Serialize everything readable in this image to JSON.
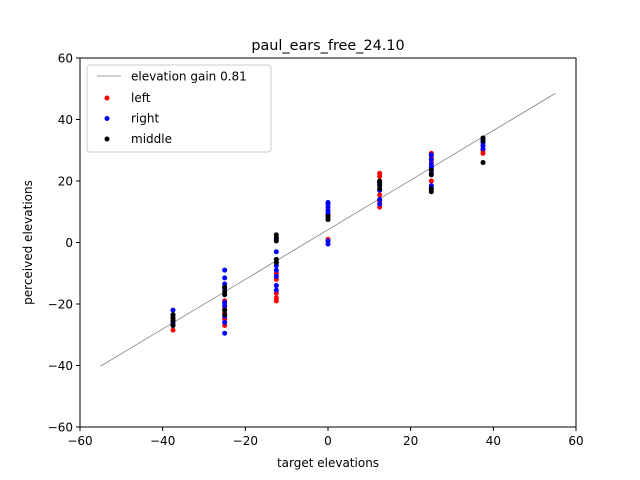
{
  "chart_data": {
    "type": "scatter",
    "title": "paul_ears_free_24.10",
    "xlabel": "target elevations",
    "ylabel": "perceived elevations",
    "xlim": [
      -60,
      60
    ],
    "ylim": [
      -60,
      60
    ],
    "xticks": [
      -60,
      -40,
      -20,
      0,
      20,
      40,
      60
    ],
    "yticks": [
      -60,
      -40,
      -20,
      0,
      20,
      40,
      60
    ],
    "grid": false,
    "legend_position": "top-left",
    "fit_line": {
      "name": "elevation gain 0.81",
      "x": [
        -55,
        55
      ],
      "y": [
        -40.2,
        48.5
      ],
      "color": "#808080"
    },
    "series": [
      {
        "name": "left",
        "color": "#ff0000",
        "points": [
          [
            -37.5,
            -28.5
          ],
          [
            -37.5,
            -26.5
          ],
          [
            -37.5,
            -25.0
          ],
          [
            -25,
            -27.0
          ],
          [
            -25,
            -25.0
          ],
          [
            -25,
            -23.0
          ],
          [
            -25,
            -21.0
          ],
          [
            -25,
            -19.0
          ],
          [
            -12.5,
            -19.0
          ],
          [
            -12.5,
            -18.0
          ],
          [
            -12.5,
            -16.5
          ],
          [
            -12.5,
            -12.0
          ],
          [
            -12.5,
            -10.0
          ],
          [
            -12.5,
            -6.5
          ],
          [
            0,
            1.0
          ],
          [
            0,
            7.5
          ],
          [
            0,
            9.0
          ],
          [
            12.5,
            11.5
          ],
          [
            12.5,
            13.5
          ],
          [
            12.5,
            15.5
          ],
          [
            12.5,
            19.5
          ],
          [
            12.5,
            21.5
          ],
          [
            12.5,
            22.5
          ],
          [
            25,
            20.0
          ],
          [
            25,
            24.0
          ],
          [
            25,
            26.0
          ],
          [
            25,
            27.0
          ],
          [
            25,
            28.0
          ],
          [
            25,
            29.0
          ],
          [
            37.5,
            29.0
          ],
          [
            37.5,
            30.0
          ],
          [
            37.5,
            31.5
          ]
        ]
      },
      {
        "name": "right",
        "color": "#0000ff",
        "points": [
          [
            -37.5,
            -27.0
          ],
          [
            -37.5,
            -26.0
          ],
          [
            -37.5,
            -24.5
          ],
          [
            -37.5,
            -23.5
          ],
          [
            -37.5,
            -22.0
          ],
          [
            -25,
            -29.5
          ],
          [
            -25,
            -26.0
          ],
          [
            -25,
            -24.0
          ],
          [
            -25,
            -22.0
          ],
          [
            -25,
            -20.5
          ],
          [
            -25,
            -19.5
          ],
          [
            -25,
            -15.0
          ],
          [
            -25,
            -13.5
          ],
          [
            -25,
            -11.5
          ],
          [
            -25,
            -9.0
          ],
          [
            -12.5,
            -15.5
          ],
          [
            -12.5,
            -14.0
          ],
          [
            -12.5,
            -11.0
          ],
          [
            -12.5,
            -9.0
          ],
          [
            -12.5,
            -7.5
          ],
          [
            -12.5,
            -3.0
          ],
          [
            -12.5,
            1.0
          ],
          [
            0,
            -0.5
          ],
          [
            0,
            0.5
          ],
          [
            0,
            9.5
          ],
          [
            0,
            10.5
          ],
          [
            0,
            11.5
          ],
          [
            0,
            12.5
          ],
          [
            0,
            13.0
          ],
          [
            12.5,
            12.5
          ],
          [
            12.5,
            14.0
          ],
          [
            12.5,
            17.0
          ],
          [
            12.5,
            19.0
          ],
          [
            25,
            17.5
          ],
          [
            25,
            18.5
          ],
          [
            25,
            22.5
          ],
          [
            25,
            24.5
          ],
          [
            25,
            25.5
          ],
          [
            25,
            27.0
          ],
          [
            25,
            28.5
          ],
          [
            37.5,
            30.5
          ],
          [
            37.5,
            31.5
          ],
          [
            37.5,
            32.5
          ],
          [
            37.5,
            33.5
          ]
        ]
      },
      {
        "name": "middle",
        "color": "#000000",
        "points": [
          [
            -37.5,
            -27.0
          ],
          [
            -37.5,
            -25.5
          ],
          [
            -37.5,
            -24.5
          ],
          [
            -37.5,
            -23.5
          ],
          [
            -25,
            -23.5
          ],
          [
            -25,
            -22.0
          ],
          [
            -25,
            -17.0
          ],
          [
            -25,
            -16.0
          ],
          [
            -25,
            -14.5
          ],
          [
            -12.5,
            -6.5
          ],
          [
            -12.5,
            -5.5
          ],
          [
            -12.5,
            0.5
          ],
          [
            -12.5,
            1.5
          ],
          [
            -12.5,
            2.5
          ],
          [
            0,
            7.5
          ],
          [
            0,
            8.5
          ],
          [
            12.5,
            17.5
          ],
          [
            12.5,
            18.5
          ],
          [
            12.5,
            19.5
          ],
          [
            12.5,
            20.0
          ],
          [
            25,
            16.5
          ],
          [
            25,
            17.5
          ],
          [
            25,
            22.0
          ],
          [
            25,
            23.5
          ],
          [
            37.5,
            26.0
          ],
          [
            37.5,
            33.0
          ],
          [
            37.5,
            34.0
          ]
        ]
      }
    ]
  }
}
